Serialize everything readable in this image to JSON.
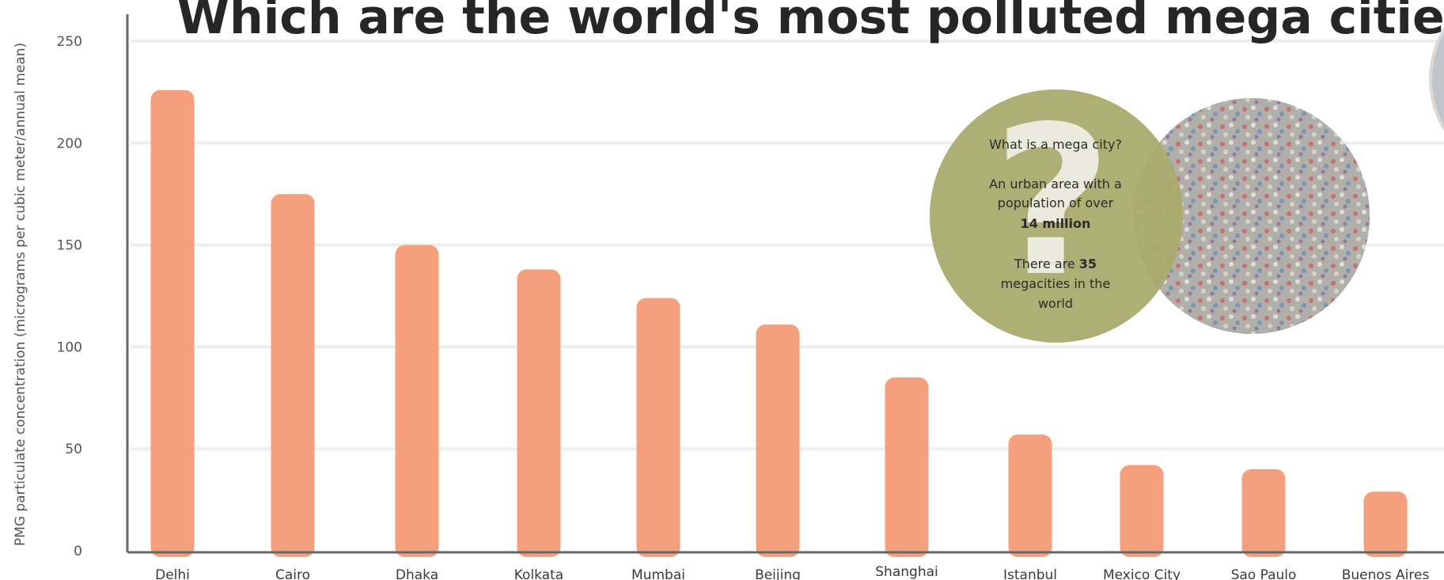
{
  "chart_data": {
    "type": "bar",
    "title": "Which are the world's most polluted mega cities?",
    "ylabel": "PMG particulate concentration (micrograms per cubic meter/annual mean)",
    "xlabel": "",
    "ylim": [
      0,
      250
    ],
    "yticks": [
      0,
      50,
      100,
      150,
      200,
      250
    ],
    "grid": true,
    "categories": [
      "Delhi",
      "Cairo",
      "Dhaka",
      "Kolkata",
      "Mumbai",
      "Beijing",
      "Shanghai",
      "Istanbul",
      "Mexico City",
      "Sao Paulo",
      "Buenos Aires"
    ],
    "values": [
      226,
      175,
      150,
      138,
      124,
      111,
      85,
      57,
      42,
      40,
      29
    ],
    "colors": {
      "bar": "#f4a07d",
      "grid": "#eeeeee",
      "axis": "#666666"
    }
  },
  "info": {
    "heading": "What is a mega city?",
    "line1": "An urban area with a",
    "line2": "population of over",
    "highlight1": "14 million",
    "line3_pre": "There are ",
    "highlight2": "35",
    "line4": "megacities in the",
    "line5": "world",
    "question_mark": "?",
    "bubble_color": "#a9ab6d",
    "photo_color": "#9a9894"
  }
}
